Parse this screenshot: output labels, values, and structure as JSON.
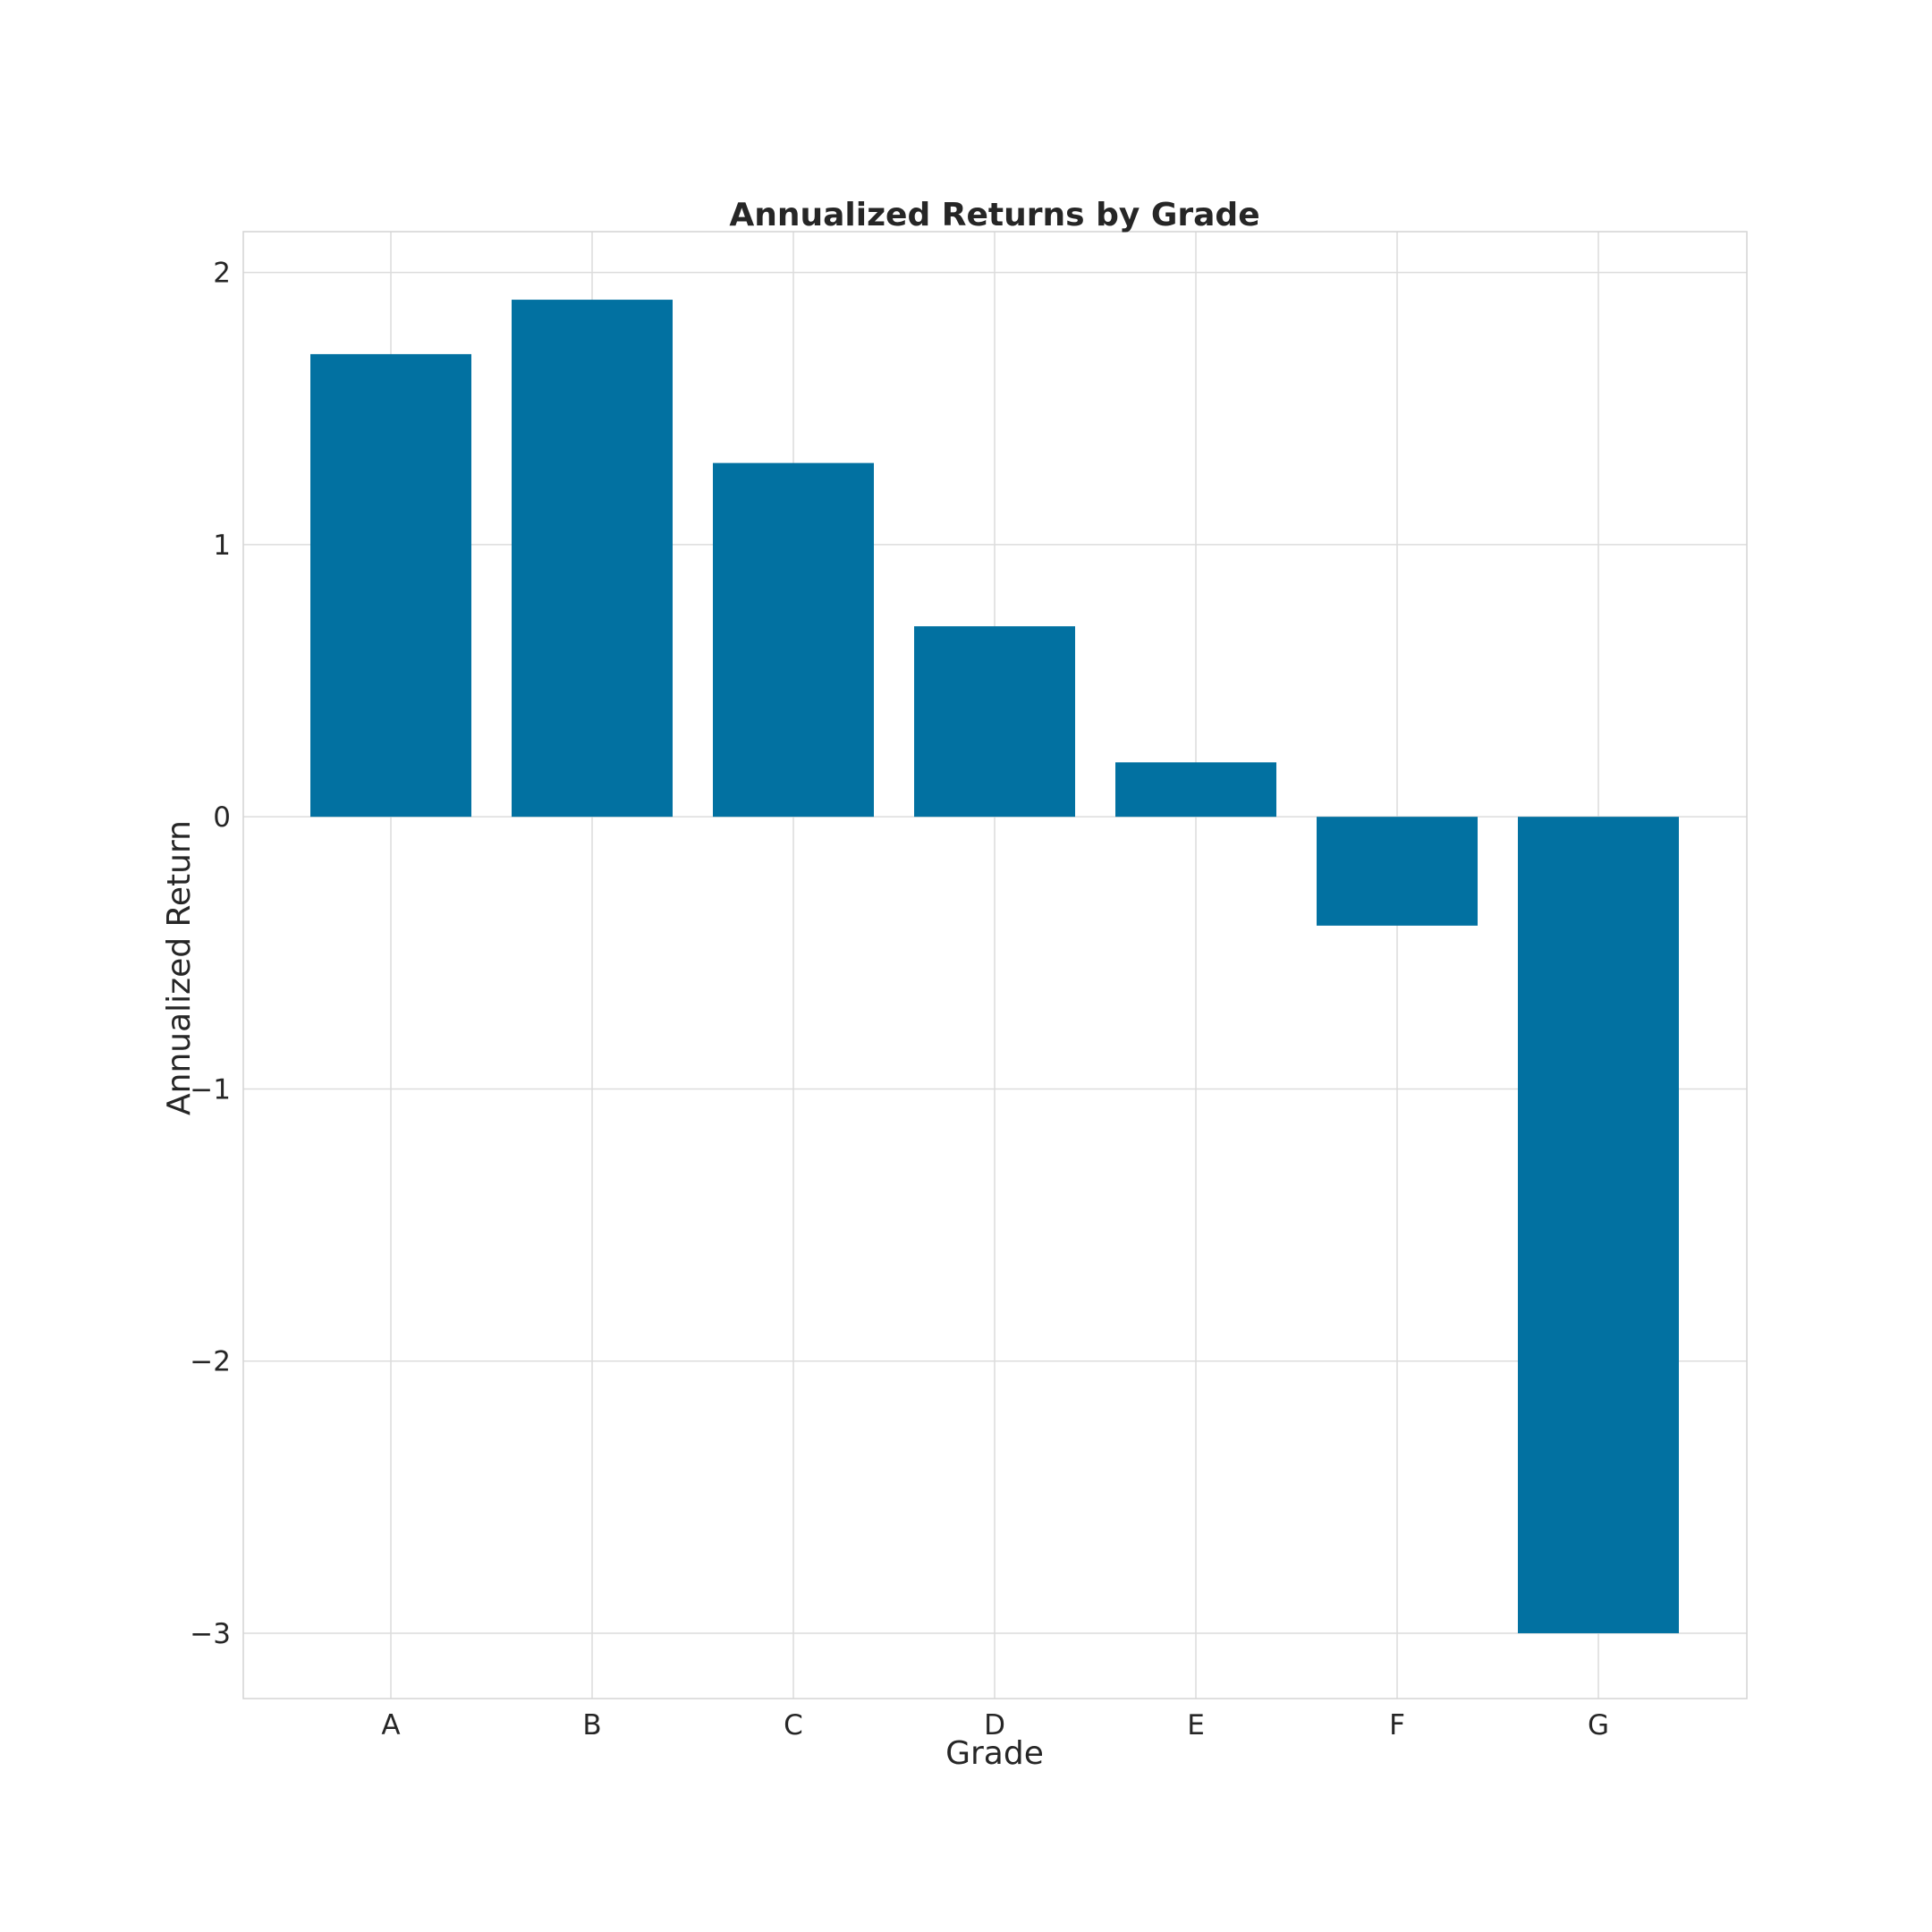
{
  "chart_data": {
    "type": "bar",
    "title": "Annualized Returns by Grade",
    "xlabel": "Grade",
    "ylabel": "Annualized Return",
    "categories": [
      "A",
      "B",
      "C",
      "D",
      "E",
      "F",
      "G"
    ],
    "values": [
      1.7,
      1.9,
      1.3,
      0.7,
      0.2,
      -0.4,
      -3.0
    ],
    "ylim": [
      -3.24,
      2.15
    ],
    "yticks": [
      2,
      1,
      0,
      -1,
      -2,
      -3
    ],
    "ytick_labels": [
      "2",
      "1",
      "0",
      "−1",
      "−2",
      "−3"
    ],
    "grid": true,
    "bar_color": "#0271a1",
    "grid_color": "#dcdcdc"
  }
}
